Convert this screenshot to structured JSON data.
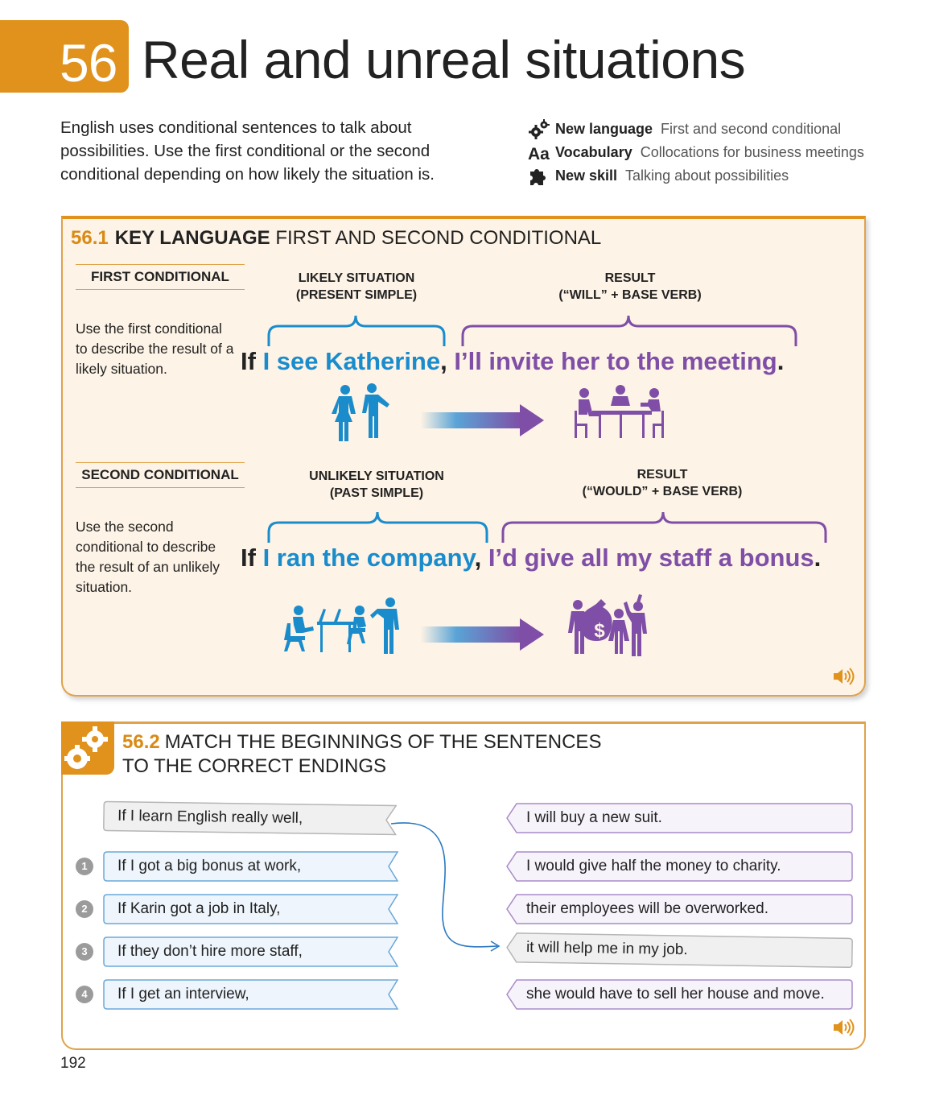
{
  "header": {
    "unit_number": "56",
    "title": "Real and unreal situations",
    "intro": "English uses conditional sentences to talk about possibilities. Use the first conditional or the second conditional depending on how likely the situation is."
  },
  "meta": [
    {
      "icon": "gears-icon",
      "key": "New language",
      "value": "First and second conditional"
    },
    {
      "icon": "aa-icon",
      "key": "Vocabulary",
      "value": "Collocations for business meetings"
    },
    {
      "icon": "puzzle-icon",
      "key": "New skill",
      "value": "Talking about possibilities"
    }
  ],
  "key_language": {
    "number": "56.1",
    "title_bold": "KEY LANGUAGE",
    "title_rest": "FIRST AND SECOND CONDITIONAL",
    "first": {
      "label": "FIRST CONDITIONAL",
      "description": "Use the first conditional to describe the result of a likely situation.",
      "cap_left_1": "LIKELY SITUATION",
      "cap_left_2": "(PRESENT SIMPLE)",
      "cap_right_1": "RESULT",
      "cap_right_2": "(“WILL” + BASE VERB)",
      "if": "If",
      "condition": "I see Katherine",
      "comma": ",",
      "result": "I’ll invite her to the meeting",
      "period": "."
    },
    "second": {
      "label": "SECOND CONDITIONAL",
      "description": "Use the second conditional to describe the result of an unlikely situation.",
      "cap_left_1": "UNLIKELY SITUATION",
      "cap_left_2": "(PAST SIMPLE)",
      "cap_right_1": "RESULT",
      "cap_right_2": "(“WOULD” + BASE VERB)",
      "if": "If",
      "condition": "I ran the company",
      "comma": ",",
      "result": "I’d give all my staff a bonus",
      "period": "."
    },
    "money_symbol": "$"
  },
  "exercise": {
    "number": "56.2",
    "title_line1": "MATCH THE BEGINNINGS OF THE SENTENCES",
    "title_line2": "TO THE CORRECT ENDINGS",
    "example_left": "If I learn English really well,",
    "questions": [
      {
        "n": "1",
        "text": "If I got a big bonus at work,"
      },
      {
        "n": "2",
        "text": "If Karin got a job in Italy,"
      },
      {
        "n": "3",
        "text": "If they don’t hire more staff,"
      },
      {
        "n": "4",
        "text": "If I get an interview,"
      }
    ],
    "endings": [
      "I will buy a new suit.",
      "I would give half the money to charity.",
      "their employees will be overworked.",
      "it will help me in my job.",
      "she would have to sell her house and move."
    ]
  },
  "page_number": "192",
  "colors": {
    "orange": "#e0921c",
    "blue": "#1a8ccc",
    "purple": "#7f4ea6",
    "panel_bg": "#fdf3e6"
  }
}
